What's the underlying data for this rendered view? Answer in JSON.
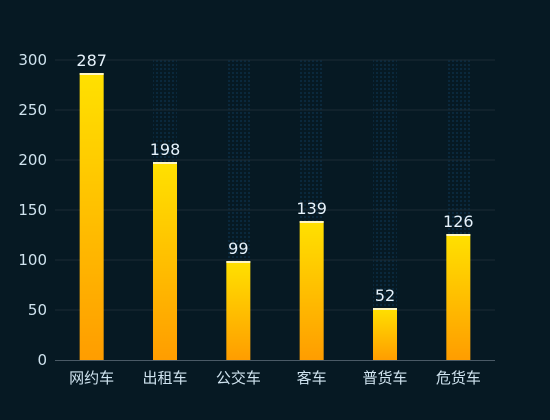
{
  "theme": {
    "background": "#061923",
    "axis_text": "#cfe3ef",
    "value_text": "#e6f2fb",
    "grid": "#1c2c36",
    "axis": "#4a5a66",
    "column_band": "#0b2a3f",
    "bar_top": "#ffe100",
    "bar_bottom": "#ff9d00",
    "bar_cap": "#fff6c2"
  },
  "chart_data": {
    "type": "bar",
    "categories": [
      "网约车",
      "出租车",
      "公交车",
      "客车",
      "普货车",
      "危货车"
    ],
    "values": [
      287,
      198,
      99,
      139,
      52,
      126
    ],
    "title": "",
    "xlabel": "",
    "ylabel": "",
    "ylim": [
      0,
      300
    ],
    "yticks": [
      0,
      50,
      100,
      150,
      200,
      250,
      300
    ],
    "data_labels": true,
    "grid": true,
    "legend": "none"
  }
}
